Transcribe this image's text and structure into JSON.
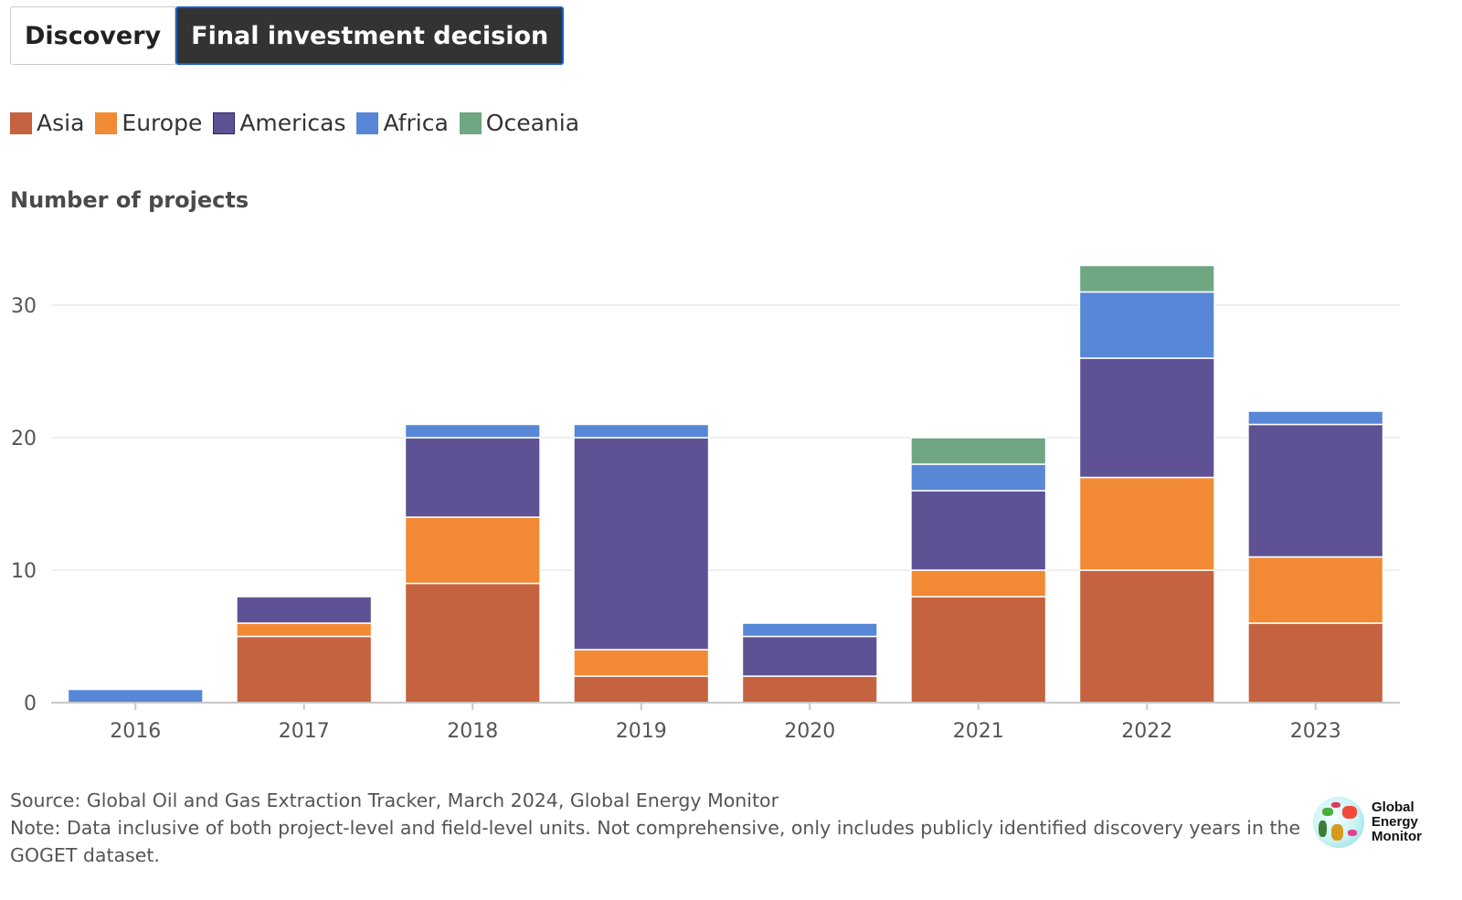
{
  "tabs": [
    {
      "label": "Discovery",
      "active": false
    },
    {
      "label": "Final investment decision",
      "active": true
    }
  ],
  "legend": [
    {
      "label": "Asia",
      "color": "#c5623f"
    },
    {
      "label": "Europe",
      "color": "#f28a35"
    },
    {
      "label": "Americas",
      "color": "#5e5295"
    },
    {
      "label": "Africa",
      "color": "#5787d6"
    },
    {
      "label": "Oceania",
      "color": "#6fa783"
    }
  ],
  "footer": {
    "source": "Source: Global Oil and Gas Extraction Tracker, March 2024, Global Energy Monitor",
    "note": "Note: Data inclusive of both project-level and field-level units. Not comprehensive, only includes publicly identified discovery years in the GOGET dataset."
  },
  "logo": {
    "line1": "Global",
    "line2": "Energy",
    "line3": "Monitor"
  },
  "chart_data": {
    "type": "bar",
    "stacked": true,
    "title": "",
    "ylabel": "Number of projects",
    "xlabel": "",
    "categories": [
      "2016",
      "2017",
      "2018",
      "2019",
      "2020",
      "2021",
      "2022",
      "2023"
    ],
    "series": [
      {
        "name": "Asia",
        "color": "#c5623f",
        "values": [
          0,
          5,
          9,
          2,
          2,
          8,
          10,
          6
        ]
      },
      {
        "name": "Europe",
        "color": "#f28a35",
        "values": [
          0,
          1,
          5,
          2,
          0,
          2,
          7,
          5
        ]
      },
      {
        "name": "Americas",
        "color": "#5e5295",
        "values": [
          0,
          2,
          6,
          16,
          3,
          6,
          9,
          10
        ]
      },
      {
        "name": "Africa",
        "color": "#5787d6",
        "values": [
          1,
          0,
          1,
          1,
          1,
          2,
          5,
          1
        ]
      },
      {
        "name": "Oceania",
        "color": "#6fa783",
        "values": [
          0,
          0,
          0,
          0,
          0,
          2,
          2,
          0
        ]
      }
    ],
    "yticks": [
      0,
      10,
      20,
      30
    ],
    "ylim": [
      0,
      35
    ],
    "grid": true,
    "legend_position": "top-left"
  }
}
